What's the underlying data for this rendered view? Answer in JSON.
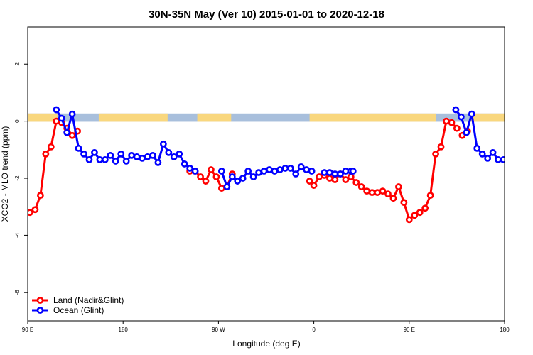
{
  "chart_data": {
    "type": "line",
    "title": "30N-35N May (Ver 10)   2015-01-01 to 2020-12-18",
    "xlabel": "Longitude (deg E)",
    "ylabel": "XCO2 - MLO trend (ppm)",
    "xlim": [
      90,
      450
    ],
    "ylim": [
      -7,
      3.3
    ],
    "x_ticks": [
      {
        "value": 90,
        "label": "90 E"
      },
      {
        "value": 180,
        "label": "180"
      },
      {
        "value": 270,
        "label": "90 W"
      },
      {
        "value": 360,
        "label": "0"
      },
      {
        "value": 450,
        "label": "90 E"
      },
      {
        "value": 540,
        "label": "180"
      }
    ],
    "y_ticks": [
      {
        "value": 2,
        "label": "2"
      },
      {
        "value": 0,
        "label": "0"
      },
      {
        "value": -2,
        "label": "-2"
      },
      {
        "value": -4,
        "label": "-4"
      },
      {
        "value": -6,
        "label": "-6"
      }
    ],
    "x_axis_max": 540,
    "grid": false,
    "legend_position": "bottom-left",
    "surface_band": {
      "ocean_color": "#a8bfdc",
      "land_color": "#f9d77e",
      "land_ranges": [
        [
          90,
          118
        ],
        [
          157,
          222
        ],
        [
          250,
          282
        ],
        [
          356,
          475
        ],
        [
          508,
          540
        ]
      ]
    },
    "series": [
      {
        "name": "Land (Nadir&Glint)",
        "color": "#ff0000",
        "segments": [
          {
            "x": [
              92,
              97,
              102,
              107,
              112,
              117,
              122,
              127,
              132,
              137
            ],
            "y": [
              -3.2,
              -3.1,
              -2.6,
              -1.15,
              -0.9,
              0.0,
              -0.05,
              -0.25,
              -0.5,
              -0.35
            ]
          },
          {
            "x": [
              243,
              248,
              253,
              258,
              263,
              268,
              273
            ],
            "y": [
              -1.75,
              -1.75,
              -1.95,
              -2.1,
              -1.7,
              -1.95,
              -2.35
            ]
          },
          {
            "x": [
              278,
              283
            ],
            "y": [
              -2.3,
              -1.85
            ]
          },
          {
            "x": [
              356,
              360,
              365,
              370,
              375,
              380,
              385,
              390,
              395,
              400,
              405,
              410,
              415,
              420,
              425,
              430,
              435,
              440,
              445,
              450,
              455,
              460,
              465,
              470,
              475,
              480,
              485,
              490,
              495
            ],
            "y": [
              -2.1,
              -2.25,
              -1.95,
              -1.9,
              -2.0,
              -2.05,
              -1.85,
              -2.05,
              -1.95,
              -2.15,
              -2.3,
              -2.45,
              -2.5,
              -2.5,
              -2.45,
              -2.55,
              -2.7,
              -2.3,
              -2.85,
              -3.45,
              -3.3,
              -3.2,
              -3.05,
              -2.6,
              -1.15,
              -0.9,
              0.0,
              -0.05,
              -0.25
            ]
          },
          {
            "x": [
              500,
              505
            ],
            "y": [
              -0.5,
              -0.35
            ]
          }
        ]
      },
      {
        "name": "Ocean (Glint)",
        "color": "#0000ff",
        "segments": [
          {
            "x": [
              117,
              122,
              127,
              132,
              138,
              143,
              148,
              153,
              158,
              163,
              168,
              173,
              178,
              183,
              188,
              193,
              198,
              203,
              208,
              213,
              218,
              223,
              228,
              233,
              238,
              243,
              248
            ],
            "y": [
              0.4,
              0.1,
              -0.4,
              0.25,
              -0.95,
              -1.15,
              -1.35,
              -1.1,
              -1.35,
              -1.35,
              -1.2,
              -1.4,
              -1.15,
              -1.4,
              -1.2,
              -1.25,
              -1.3,
              -1.25,
              -1.2,
              -1.45,
              -0.8,
              -1.1,
              -1.25,
              -1.15,
              -1.5,
              -1.65,
              -1.75
            ]
          },
          {
            "x": [
              273,
              278,
              283,
              288,
              293,
              298,
              303,
              308,
              313,
              318,
              323,
              328,
              333,
              338,
              343,
              348,
              353,
              358
            ],
            "y": [
              -1.75,
              -2.3,
              -1.95,
              -2.1,
              -2.0,
              -1.75,
              -1.95,
              -1.8,
              -1.75,
              -1.7,
              -1.75,
              -1.7,
              -1.65,
              -1.65,
              -1.85,
              -1.6,
              -1.7,
              -1.75
            ]
          },
          {
            "x": [
              370,
              375,
              380,
              385,
              390,
              395,
              397
            ],
            "y": [
              -1.8,
              -1.8,
              -1.85,
              -1.85,
              -1.75,
              -1.75,
              -1.75
            ]
          },
          {
            "x": [
              494,
              499,
              504,
              509,
              514,
              519,
              524,
              529,
              534,
              539
            ],
            "y": [
              0.4,
              0.15,
              -0.4,
              0.25,
              -0.95,
              -1.15,
              -1.3,
              -1.1,
              -1.35,
              -1.35
            ]
          }
        ]
      }
    ]
  }
}
